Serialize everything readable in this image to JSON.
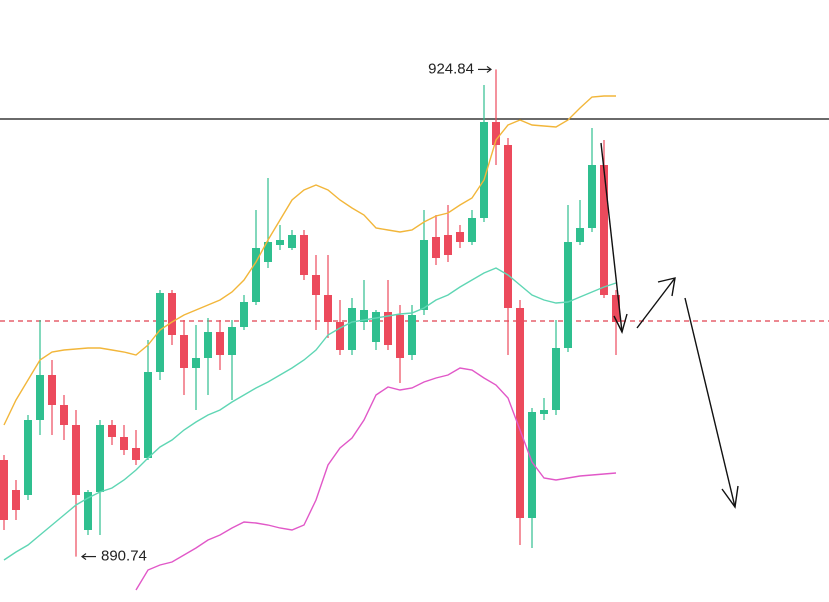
{
  "chart_data": {
    "type": "candlestick",
    "ylim": [
      887.56,
      929.7
    ],
    "up_color": "#2fbf8f",
    "down_color": "#ec4a5c",
    "candles": {
      "open": [
        897.5,
        895.4,
        895.05,
        900.3,
        903.45,
        901.35,
        899.95,
        892.6,
        895.26,
        899.95,
        899.11,
        898.34,
        897.64,
        903.66,
        909.19,
        906.25,
        903.94,
        904.64,
        906.46,
        904.85,
        906.81,
        908.56,
        911.36,
        912.55,
        912.34,
        913.25,
        910.45,
        909.05,
        907.16,
        905.2,
        907.16,
        905.76,
        907.86,
        907.65,
        904.85,
        908.0,
        913.11,
        913.25,
        913.46,
        912.76,
        914.44,
        921.16,
        919.55,
        908.14,
        893.44,
        900.72,
        901.0,
        905.34,
        912.76,
        913.74,
        918.15,
        909.05
      ],
      "high": [
        897.85,
        896.1,
        900.65,
        907.3,
        904.5,
        902.05,
        901.0,
        895.4,
        900.3,
        900.3,
        899.95,
        899.6,
        905.9,
        909.4,
        909.4,
        907.3,
        906.95,
        907.44,
        907.3,
        907.3,
        909.05,
        915.0,
        917.24,
        913.95,
        913.6,
        913.6,
        911.85,
        911.85,
        908.7,
        908.84,
        910.1,
        908.0,
        910.1,
        908.35,
        908.35,
        915.0,
        914.65,
        915.35,
        913.95,
        915.0,
        923.75,
        924.84,
        920.04,
        908.7,
        901.14,
        901.84,
        907.3,
        915.35,
        915.7,
        920.74,
        919.9,
        909.4
      ],
      "low": [
        892.6,
        893.3,
        894.7,
        899.25,
        899.25,
        898.9,
        890.74,
        892.25,
        892.25,
        898.55,
        897.85,
        897.15,
        897.5,
        903.1,
        905.55,
        902.05,
        901.0,
        902.05,
        903.8,
        901.7,
        906.6,
        908.35,
        910.94,
        912.2,
        912.2,
        910.1,
        906.6,
        906.04,
        904.85,
        904.85,
        906.6,
        905.2,
        905.2,
        902.89,
        904.5,
        907.65,
        911.15,
        911.36,
        912.34,
        912.55,
        914.16,
        918.15,
        904.85,
        891.55,
        891.34,
        900.3,
        900.65,
        905.06,
        912.55,
        913.46,
        908.84,
        904.85
      ],
      "close": [
        893.3,
        894.0,
        900.3,
        903.45,
        901.35,
        899.95,
        895.05,
        895.26,
        899.95,
        899.11,
        898.2,
        897.5,
        903.66,
        909.19,
        906.25,
        903.94,
        904.64,
        906.46,
        904.85,
        906.81,
        908.56,
        912.34,
        912.76,
        912.9,
        913.25,
        910.45,
        909.05,
        907.16,
        905.2,
        908.14,
        908.0,
        907.86,
        905.55,
        904.64,
        907.65,
        912.9,
        911.64,
        911.85,
        912.76,
        914.44,
        921.16,
        919.55,
        908.14,
        893.44,
        900.86,
        901.0,
        905.34,
        912.76,
        913.74,
        918.15,
        909.05,
        907.16
      ]
    },
    "lines": [
      {
        "color": "#f2b63a",
        "values": [
          899.95,
          901.7,
          903.1,
          904.5,
          905.06,
          905.2,
          905.27,
          905.34,
          905.34,
          905.2,
          905.06,
          904.85,
          905.55,
          906.6,
          907.16,
          907.65,
          908.0,
          908.35,
          908.7,
          909.26,
          910.1,
          911.36,
          912.9,
          914.3,
          915.7,
          916.4,
          916.75,
          916.4,
          915.7,
          915.14,
          914.65,
          913.74,
          913.6,
          913.46,
          913.6,
          914.16,
          914.58,
          914.79,
          915.35,
          915.84,
          917.1,
          919.9,
          920.95,
          921.3,
          920.95,
          920.88,
          920.81,
          921.3,
          922.14,
          922.91,
          922.98,
          922.98
        ]
      },
      {
        "color": "#5fd6b4",
        "values": [
          890.5,
          891.06,
          891.55,
          892.25,
          892.95,
          893.65,
          894.35,
          894.84,
          895.26,
          895.54,
          896.1,
          896.8,
          897.64,
          898.41,
          898.9,
          899.6,
          900.16,
          900.65,
          901.0,
          901.56,
          902.05,
          902.54,
          902.96,
          903.45,
          903.94,
          904.5,
          905.2,
          906.25,
          906.74,
          907.16,
          907.3,
          907.44,
          907.58,
          907.72,
          907.79,
          908.14,
          908.7,
          909.05,
          909.61,
          910.1,
          910.59,
          910.94,
          910.45,
          909.75,
          909.05,
          908.7,
          908.49,
          908.56,
          908.91,
          909.26,
          909.61,
          909.89
        ]
      },
      {
        "color": "#e158c8",
        "values": [
          null,
          null,
          null,
          null,
          null,
          null,
          null,
          null,
          null,
          null,
          null,
          888.4,
          889.8,
          890.15,
          890.36,
          890.85,
          891.34,
          891.9,
          892.25,
          892.74,
          893.16,
          893.09,
          892.95,
          892.74,
          892.6,
          892.95,
          894.7,
          897.15,
          898.34,
          899.04,
          900.3,
          902.05,
          902.61,
          902.4,
          902.54,
          902.96,
          903.24,
          903.45,
          903.94,
          903.8,
          903.24,
          902.75,
          901.84,
          899.6,
          897.36,
          896.24,
          896.1,
          896.24,
          896.38,
          896.45,
          896.52,
          896.59
        ]
      }
    ],
    "levels": [
      {
        "value": 921.37,
        "color": "#111111",
        "style": "solid"
      },
      {
        "value": 907.23,
        "color": "#e0404f",
        "style": "dashed"
      }
    ],
    "annotations": [
      924.84,
      890.74
    ]
  }
}
